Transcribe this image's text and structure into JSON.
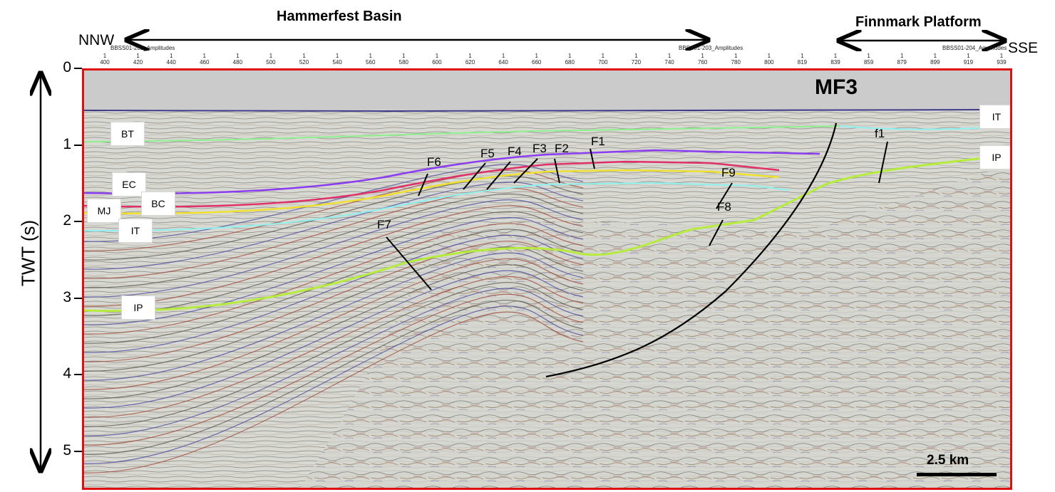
{
  "regions": {
    "basin": "Hammerfest Basin",
    "platform": "Finnmark Platform"
  },
  "directions": {
    "left": "NNW",
    "right": "SSE"
  },
  "axis": {
    "ylabel": "TWT (s)",
    "yticks": [
      "0",
      "1",
      "2",
      "3",
      "4",
      "5"
    ]
  },
  "survey_lines": [
    "BBSS01-202_Amplitudes",
    "BBSS01-203_Amplitudes",
    "BBSS01-204_Amplitudes"
  ],
  "shotpoints": [
    "400",
    "420",
    "440",
    "460",
    "480",
    "500",
    "520",
    "540",
    "560",
    "580",
    "600",
    "620",
    "640",
    "660",
    "680",
    "700",
    "720",
    "740",
    "760",
    "780",
    "800",
    "819",
    "839",
    "859",
    "879",
    "899",
    "919",
    "939"
  ],
  "main_fault": "MF3",
  "faults": [
    "F1",
    "F2",
    "F3",
    "F4",
    "F5",
    "F6",
    "F7",
    "F8",
    "F9",
    "f1"
  ],
  "horizon_tags": {
    "bt": "BT",
    "ec": "EC",
    "bc": "BC",
    "mj": "MJ",
    "it_left": "IT",
    "ip_left": "IP",
    "it_right": "IT",
    "ip_right": "IP"
  },
  "scale_bar": "2.5 km",
  "colors": {
    "frame": "#e01010",
    "BT": "#8ff08f",
    "EC": "#8a3cf0",
    "BC": "#f0e030",
    "MJ": "#e0306a",
    "IT": "#8ff0f0",
    "IP": "#b6ec3c"
  }
}
